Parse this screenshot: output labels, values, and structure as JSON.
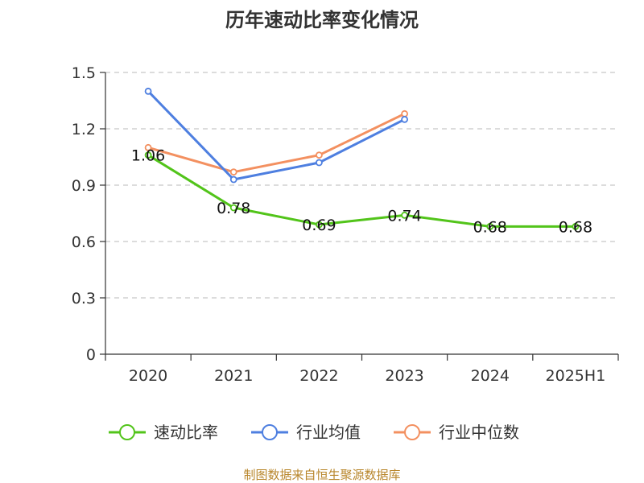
{
  "chart_data": {
    "type": "line",
    "title": "历年速动比率变化情况",
    "categories": [
      "2020",
      "2021",
      "2022",
      "2023",
      "2024",
      "2025H1"
    ],
    "ylim": [
      0,
      1.5
    ],
    "yticks": [
      "0",
      "0.3",
      "0.6",
      "0.9",
      "1.2",
      "1.5"
    ],
    "ytick_values": [
      0,
      0.3,
      0.6,
      0.9,
      1.2,
      1.5
    ],
    "grid": true,
    "legend_position": "bottom",
    "series": [
      {
        "name": "速动比率",
        "color": "#52c41a",
        "values": [
          1.06,
          0.78,
          0.69,
          0.74,
          0.68,
          0.68
        ],
        "labels": [
          "1.06",
          "0.78",
          "0.69",
          "0.74",
          "0.68",
          "0.68"
        ]
      },
      {
        "name": "行业均值",
        "color": "#4e7fe0",
        "values": [
          1.4,
          0.93,
          1.02,
          1.25,
          null,
          null
        ]
      },
      {
        "name": "行业中位数",
        "color": "#f39060",
        "values": [
          1.1,
          0.97,
          1.06,
          1.28,
          null,
          null
        ]
      }
    ],
    "source": "制图数据来自恒生聚源数据库"
  }
}
